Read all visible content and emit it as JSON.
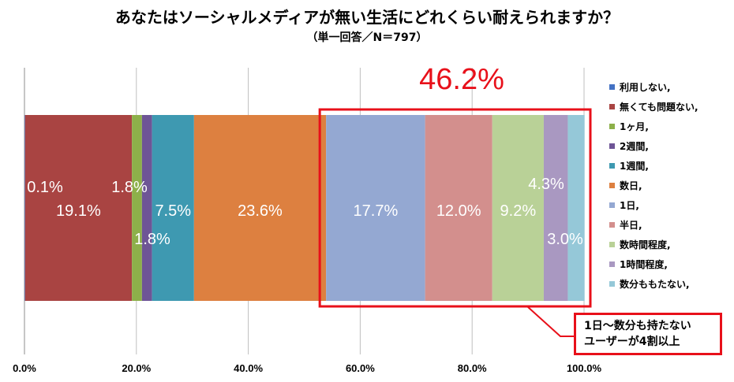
{
  "title": "あなたはソーシャルメディアが無い生活にどれくらい耐えられますか？",
  "subtitle": "（単一回答／N＝797）",
  "callout": {
    "percent": "46.2%",
    "note_line1": "1日～数分も持たない",
    "note_line2": "ユーザーが4割以上"
  },
  "colors": {
    "callout_red": "#e8101a"
  },
  "chart_data": {
    "type": "bar",
    "orientation": "horizontal",
    "stacked": true,
    "title": "あなたはソーシャルメディアが無い生活にどれくらい耐えられますか？",
    "subtitle": "（単一回答／N＝797）",
    "xlim": [
      0,
      100
    ],
    "x_ticks": [
      "0.0%",
      "20.0%",
      "40.0%",
      "60.0%",
      "80.0%",
      "100.0%"
    ],
    "x_tick_values": [
      0,
      20,
      40,
      60,
      80,
      100
    ],
    "grid": true,
    "legend_position": "right",
    "series": [
      {
        "name": "利用しない,",
        "value": 0.1,
        "label": "0.1%",
        "color": "#4472c4"
      },
      {
        "name": "無くても問題ない,",
        "value": 19.1,
        "label": "19.1%",
        "color": "#a94442"
      },
      {
        "name": "1ヶ月,",
        "value": 1.8,
        "label": "1.8%",
        "color": "#8db04a"
      },
      {
        "name": "2週間,",
        "value": 1.8,
        "label": "1.8%",
        "color": "#6e5596"
      },
      {
        "name": "1週間,",
        "value": 7.5,
        "label": "7.5%",
        "color": "#3e99b1"
      },
      {
        "name": "数日,",
        "value": 23.6,
        "label": "23.6%",
        "color": "#dd8040"
      },
      {
        "name": "1日,",
        "value": 17.7,
        "label": "17.7%",
        "color": "#94a8d2"
      },
      {
        "name": "半日,",
        "value": 12.0,
        "label": "12.0%",
        "color": "#d38f8d"
      },
      {
        "name": "数時間程度,",
        "value": 9.2,
        "label": "9.2%",
        "color": "#b9d197"
      },
      {
        "name": "1時間程度,",
        "value": 4.3,
        "label": "4.3%",
        "color": "#a998c1"
      },
      {
        "name": "数分ももたない,",
        "value": 3.0,
        "label": "3.0%",
        "color": "#95c8d8"
      }
    ]
  }
}
